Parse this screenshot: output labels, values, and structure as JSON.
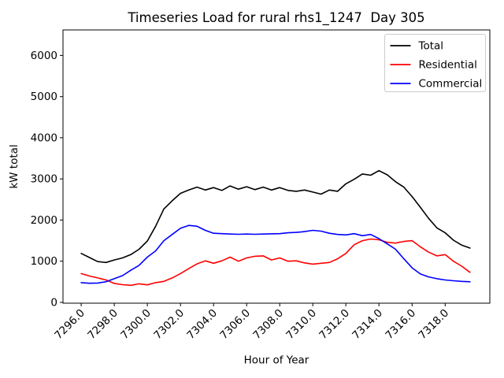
{
  "chart_data": {
    "type": "line",
    "title": "Timeseries Load for rural rhs1_1247  Day 305",
    "xlabel": "Hour of Year",
    "ylabel": "kW total",
    "x": [
      7296.0,
      7296.5,
      7297.0,
      7297.5,
      7298.0,
      7298.5,
      7299.0,
      7299.5,
      7300.0,
      7300.5,
      7301.0,
      7301.5,
      7302.0,
      7302.5,
      7303.0,
      7303.5,
      7304.0,
      7304.5,
      7305.0,
      7305.5,
      7306.0,
      7306.5,
      7307.0,
      7307.5,
      7308.0,
      7308.5,
      7309.0,
      7309.5,
      7310.0,
      7310.5,
      7311.0,
      7311.5,
      7312.0,
      7312.5,
      7313.0,
      7313.5,
      7314.0,
      7314.5,
      7315.0,
      7315.5,
      7316.0,
      7316.5,
      7317.0,
      7317.5,
      7318.0,
      7318.5,
      7319.0,
      7319.5
    ],
    "series": [
      {
        "name": "Total",
        "color": "#000000",
        "values": [
          1190,
          1090,
          990,
          970,
          1030,
          1080,
          1160,
          1290,
          1490,
          1850,
          2270,
          2470,
          2650,
          2730,
          2800,
          2730,
          2790,
          2720,
          2830,
          2750,
          2810,
          2740,
          2800,
          2730,
          2790,
          2720,
          2700,
          2730,
          2680,
          2630,
          2730,
          2700,
          2880,
          2990,
          3120,
          3090,
          3200,
          3100,
          2930,
          2800,
          2570,
          2310,
          2040,
          1810,
          1690,
          1510,
          1390,
          1320
        ]
      },
      {
        "name": "Residential",
        "color": "#ff0000",
        "values": [
          700,
          640,
          595,
          545,
          460,
          430,
          415,
          450,
          425,
          480,
          510,
          595,
          700,
          820,
          935,
          1010,
          950,
          1010,
          1100,
          1000,
          1080,
          1120,
          1130,
          1030,
          1080,
          1000,
          1010,
          960,
          930,
          950,
          970,
          1060,
          1190,
          1400,
          1500,
          1540,
          1520,
          1460,
          1440,
          1480,
          1500,
          1350,
          1220,
          1130,
          1160,
          1000,
          880,
          730
        ]
      },
      {
        "name": "Commercial",
        "color": "#0000ff",
        "values": [
          480,
          465,
          470,
          500,
          575,
          650,
          780,
          900,
          1100,
          1250,
          1500,
          1650,
          1800,
          1870,
          1850,
          1750,
          1680,
          1670,
          1660,
          1655,
          1660,
          1655,
          1660,
          1665,
          1670,
          1690,
          1700,
          1720,
          1750,
          1730,
          1680,
          1650,
          1640,
          1670,
          1620,
          1650,
          1550,
          1420,
          1290,
          1060,
          840,
          690,
          620,
          575,
          545,
          525,
          510,
          500
        ]
      }
    ],
    "xlim": [
      7294.9,
      7320.7
    ],
    "ylim": [
      -20,
      6620
    ],
    "xticks": [
      7296,
      7298,
      7300,
      7302,
      7304,
      7306,
      7308,
      7310,
      7312,
      7314,
      7316,
      7318
    ],
    "xtick_labels": [
      "7296.0",
      "7298.0",
      "7300.0",
      "7302.0",
      "7304.0",
      "7306.0",
      "7308.0",
      "7310.0",
      "7312.0",
      "7314.0",
      "7316.0",
      "7318.0"
    ],
    "xtick_rotation": 45,
    "yticks": [
      0,
      1000,
      2000,
      3000,
      4000,
      5000,
      6000
    ],
    "ytick_labels": [
      "0",
      "1000",
      "2000",
      "3000",
      "4000",
      "5000",
      "6000"
    ],
    "grid": false,
    "legend": {
      "position": "upper right",
      "entries": [
        "Total",
        "Residential",
        "Commercial"
      ]
    },
    "colors": {
      "background": "#ffffff",
      "axes": "#000000",
      "legend_border": "#cccccc"
    }
  }
}
